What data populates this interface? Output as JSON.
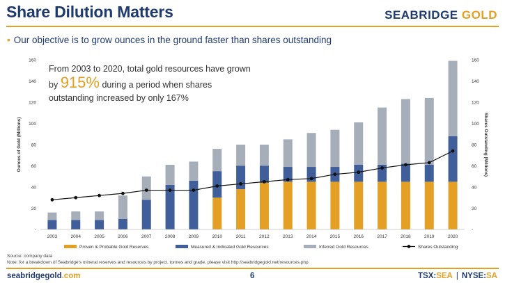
{
  "header": {
    "title": "Share Dilution Matters",
    "brand_part1": "SEABRIDGE",
    "brand_part2": "GOLD"
  },
  "bullet": "Our objective is to grow ounces in the ground faster than shares outstanding",
  "annotation": {
    "line1": "From 2003 to 2020, total gold resources have grown",
    "line2_prefix": "by",
    "highlight": "915%",
    "line2_suffix": "during a period when shares",
    "line3": "outstanding increased by only 167%"
  },
  "footer": {
    "source": "Source: company data",
    "note": "Note: for a breakdown of Seabridge's mineral reserves and resources by project, tonnes and grade, please visit http://seabridgegold.net/resources.php",
    "site_part1": "seabridgegold",
    "site_part2": ".com",
    "page": "6",
    "ticker1_label": "TSX:",
    "ticker1_value": "SEA",
    "ticker2_label": "NYSE:",
    "ticker2_value": "SA"
  },
  "chart_data": {
    "type": "bar",
    "stacked": true,
    "categories": [
      "2003",
      "2004",
      "2005",
      "2006",
      "2007",
      "2008",
      "2009",
      "2010",
      "2011",
      "2012",
      "2013",
      "2014",
      "2015",
      "2016",
      "2017",
      "2018",
      "2019",
      "2020"
    ],
    "ylabel": "Ounces of Gold (Millions)",
    "y2label": "Shares Outstanding (Millions)",
    "ylim": [
      0,
      160
    ],
    "y2lim": [
      0,
      160
    ],
    "yticks": [
      "-",
      "20",
      "40",
      "60",
      "80",
      "100",
      "120",
      "140",
      "160"
    ],
    "y2ticks": [
      "-",
      "20",
      "40",
      "60",
      "80",
      "100",
      "120",
      "140",
      "160"
    ],
    "series": [
      {
        "name": "Proven & Probable Gold Reserves",
        "color": "#e3a024",
        "values": [
          0,
          0,
          0,
          0,
          0,
          0,
          0,
          30,
          38,
          44,
          45,
          45,
          45,
          45,
          45,
          45,
          45,
          45
        ]
      },
      {
        "name": "Measured & Indicated Gold Resources",
        "color": "#3f5e9a",
        "values": [
          9,
          9,
          9,
          10,
          28,
          42,
          46,
          25,
          22,
          16,
          14,
          14,
          14,
          16,
          16,
          17,
          16,
          43
        ]
      },
      {
        "name": "Inferred Gold Resources",
        "color": "#a5aeb9",
        "values": [
          7,
          8,
          8,
          22,
          22,
          19,
          18,
          21,
          20,
          20,
          26,
          32,
          35,
          40,
          54,
          61,
          63,
          71
        ]
      }
    ],
    "line_series": {
      "name": "Shares Outstanding",
      "color": "#111111",
      "axis": "right",
      "values": [
        28,
        30,
        32,
        34,
        37,
        37,
        37,
        41,
        43,
        45,
        47,
        48,
        52,
        54,
        58,
        61,
        63,
        74
      ]
    },
    "grid": false,
    "legend": "bottom"
  }
}
